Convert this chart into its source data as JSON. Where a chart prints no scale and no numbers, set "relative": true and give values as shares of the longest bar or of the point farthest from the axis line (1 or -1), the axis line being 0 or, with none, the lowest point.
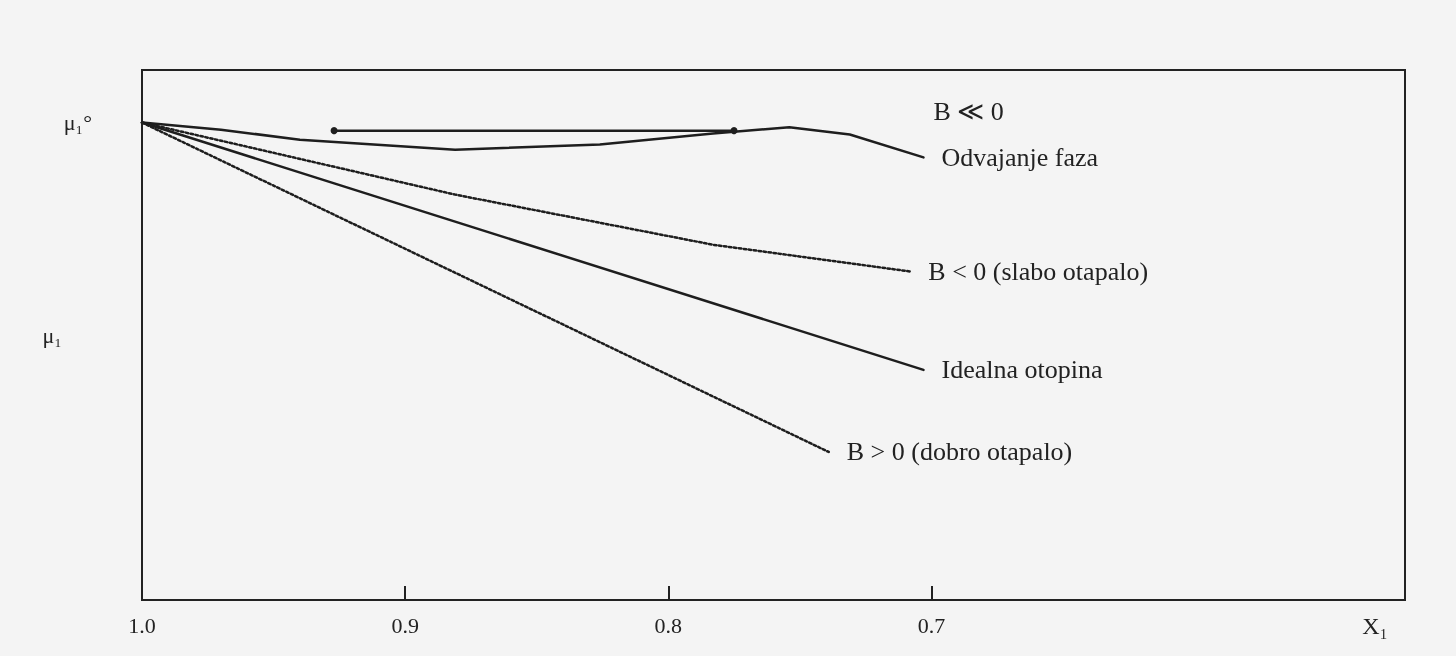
{
  "chart_data": {
    "type": "line",
    "relative": true,
    "xlabel": "X₁",
    "ylabel": "μ₁",
    "xlim": [
      1.0,
      0.52
    ],
    "xticks": [
      {
        "value": 1.0,
        "label": "1.0"
      },
      {
        "value": 0.9,
        "label": "0.9"
      },
      {
        "value": 0.8,
        "label": "0.8"
      },
      {
        "value": 0.7,
        "label": "0.7"
      }
    ],
    "grid": false,
    "legend": false,
    "marker": "none",
    "annotations": [
      {
        "text": "μ₁°",
        "x": 1.0,
        "y": 1
      }
    ],
    "series": [
      {
        "name": "B ≪ 0\nOdvajanje faza",
        "color": "#1e1e1e",
        "line_style": "solid",
        "x": [
          1.0,
          0.97,
          0.94,
          0.881,
          0.826,
          0.783,
          0.754,
          0.731,
          0.703
        ],
        "values": [
          1,
          0.985,
          0.964,
          0.943,
          0.954,
          0.977,
          0.99,
          0.975,
          0.927
        ]
      },
      {
        "color": "#1e1e1e",
        "line_style": "solid",
        "marker": "circle",
        "x": [
          0.927,
          0.775
        ],
        "values": [
          0.983,
          0.983
        ]
      },
      {
        "name": "B < 0 (slabo otapalo)",
        "color": "#1e1e1e",
        "line_style": "dotted",
        "x": [
          1.0,
          0.881,
          0.783,
          0.708
        ],
        "values": [
          1,
          0.849,
          0.744,
          0.688
        ]
      },
      {
        "name": "Idealna otopina",
        "color": "#1e1e1e",
        "line_style": "solid",
        "x": [
          1.0,
          0.703
        ],
        "values": [
          1,
          0.482
        ]
      },
      {
        "name": "B > 0 (dobro otapalo)",
        "color": "#1e1e1e",
        "line_style": "dotted",
        "x": [
          1.0,
          0.739
        ],
        "values": [
          1,
          0.31
        ]
      }
    ]
  }
}
